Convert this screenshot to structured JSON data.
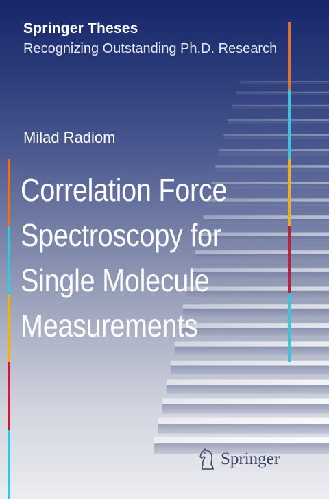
{
  "series": {
    "name": "Springer Theses",
    "subtitle": "Recognizing Outstanding Ph.D. Research"
  },
  "author": "Milad Radiom",
  "title_lines": [
    "Correlation Force",
    "Spectroscopy for",
    "Single Molecule",
    "Measurements"
  ],
  "publisher": {
    "name": "Springer",
    "logo_icon": "chess-knight-icon"
  },
  "colors": {
    "stripe_orange": "#e0742c",
    "stripe_cyan": "#3fc2dd",
    "stripe_yellow": "#e9b21c",
    "stripe_red": "#b8213f"
  }
}
